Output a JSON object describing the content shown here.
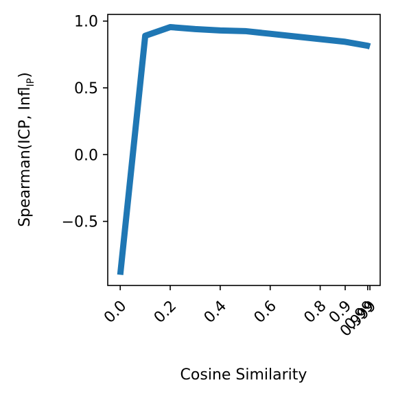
{
  "chart_data": {
    "type": "line",
    "title": "",
    "xlabel": "Cosine Similarity",
    "ylabel": {
      "main": "Spearman(ICP, Infl",
      "subscript": "IP",
      "close": ")"
    },
    "x": [
      0.0,
      0.1,
      0.2,
      0.3,
      0.4,
      0.5,
      0.6,
      0.7,
      0.8,
      0.9,
      0.99,
      0.999
    ],
    "series": [
      {
        "values": [
          -0.9,
          0.89,
          0.955,
          0.94,
          0.93,
          0.925,
          0.905,
          0.885,
          0.865,
          0.845,
          0.815,
          0.81
        ],
        "color": "#1f77b4"
      }
    ],
    "xticks": [
      0.0,
      0.2,
      0.4,
      0.6,
      0.8,
      0.9,
      0.99,
      0.999
    ],
    "xtick_labels": [
      "0.0",
      "0.2",
      "0.4",
      "0.6",
      "0.8",
      "0.9",
      "0.99",
      "0.999"
    ],
    "yticks": [
      -0.5,
      0.0,
      0.5,
      1.0
    ],
    "ytick_labels": [
      "−0.5",
      "0.0",
      "0.5",
      "1.0"
    ],
    "xlim": [
      -0.05,
      1.04
    ],
    "ylim": [
      -0.98,
      1.05
    ],
    "grid": false,
    "legend": "none"
  }
}
